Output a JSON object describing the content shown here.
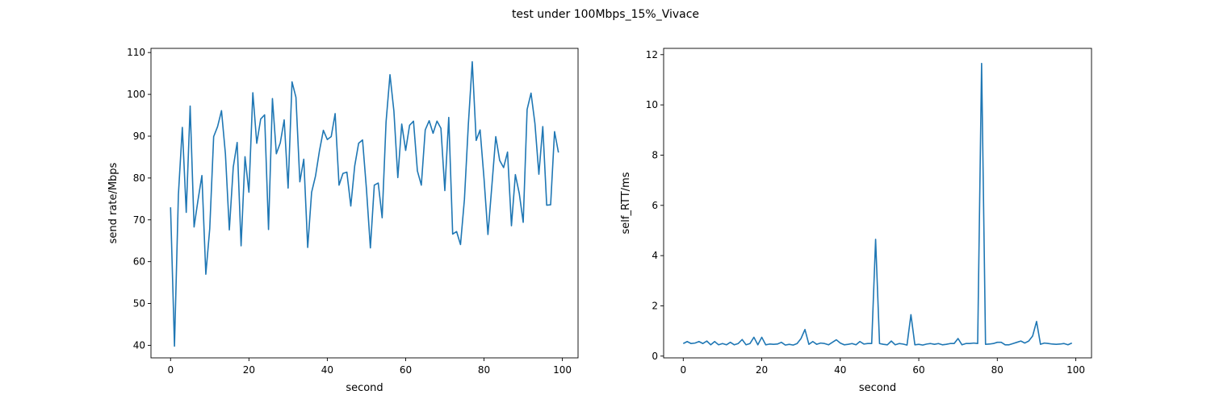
{
  "figure": {
    "title": "test under 100Mbps_15%_Vivace"
  },
  "chart_data": [
    {
      "type": "line",
      "xlabel": "second",
      "ylabel": "send rate/Mbps",
      "xlim": [
        -5,
        104
      ],
      "ylim": [
        37,
        111
      ],
      "xticks": [
        0,
        20,
        40,
        60,
        80,
        100
      ],
      "yticks": [
        40,
        50,
        60,
        70,
        80,
        90,
        100,
        110
      ],
      "grid": false,
      "color": "#1f77b4",
      "series": [
        {
          "x": [
            0,
            1,
            2,
            3,
            4,
            5,
            6,
            7,
            8,
            9,
            10,
            11,
            12,
            13,
            14,
            15,
            16,
            17,
            18,
            19,
            20,
            21,
            22,
            23,
            24,
            25,
            26,
            27,
            28,
            29,
            30,
            31,
            32,
            33,
            34,
            35,
            36,
            37,
            38,
            39,
            40,
            41,
            42,
            43,
            44,
            45,
            46,
            47,
            48,
            49,
            50,
            51,
            52,
            53,
            54,
            55,
            56,
            57,
            58,
            59,
            60,
            61,
            62,
            63,
            64,
            65,
            66,
            67,
            68,
            69,
            70,
            71,
            72,
            73,
            74,
            75,
            76,
            77,
            78,
            79,
            80,
            81,
            82,
            83,
            84,
            85,
            86,
            87,
            88,
            89,
            90,
            91,
            92,
            93,
            94,
            95,
            96,
            97,
            98,
            99
          ],
          "values": [
            73.0,
            39.8,
            76.0,
            92.1,
            71.8,
            97.2,
            68.3,
            74.7,
            80.6,
            57.0,
            67.9,
            89.9,
            92.3,
            96.1,
            85.8,
            67.6,
            82.6,
            88.5,
            63.8,
            85.1,
            76.6,
            100.4,
            88.3,
            94.1,
            95.1,
            67.7,
            99.0,
            85.8,
            88.4,
            93.9,
            77.6,
            103.0,
            99.3,
            79.1,
            84.5,
            63.4,
            76.6,
            80.5,
            86.5,
            91.4,
            89.2,
            89.9,
            95.4,
            78.3,
            81.1,
            81.4,
            73.3,
            82.9,
            88.3,
            89.1,
            77.3,
            63.3,
            78.3,
            78.8,
            70.5,
            93.4,
            104.7,
            96.0,
            80.1,
            92.9,
            86.6,
            92.6,
            93.6,
            81.7,
            78.3,
            91.5,
            93.7,
            90.7,
            93.6,
            91.9,
            77.0,
            94.5,
            66.6,
            67.2,
            64.1,
            74.9,
            92.8,
            107.8,
            89.0,
            91.5,
            79.9,
            66.5,
            78.1,
            89.9,
            84.2,
            82.5,
            86.2,
            68.6,
            80.8,
            76.3,
            69.4,
            96.4,
            100.3,
            93.0,
            80.9,
            92.3,
            73.5,
            73.6,
            91.1,
            86.1
          ]
        }
      ]
    },
    {
      "type": "line",
      "xlabel": "second",
      "ylabel": "self_RTT/ms",
      "xlim": [
        -5,
        104
      ],
      "ylim": [
        -0.07,
        12.25
      ],
      "xticks": [
        0,
        20,
        40,
        60,
        80,
        100
      ],
      "yticks": [
        0,
        2,
        4,
        6,
        8,
        10,
        12
      ],
      "grid": false,
      "color": "#1f77b4",
      "series": [
        {
          "x": [
            0,
            1,
            2,
            3,
            4,
            5,
            6,
            7,
            8,
            9,
            10,
            11,
            12,
            13,
            14,
            15,
            16,
            17,
            18,
            19,
            20,
            21,
            22,
            23,
            24,
            25,
            26,
            27,
            28,
            29,
            30,
            31,
            32,
            33,
            34,
            35,
            36,
            37,
            38,
            39,
            40,
            41,
            42,
            43,
            44,
            45,
            46,
            47,
            48,
            49,
            50,
            51,
            52,
            53,
            54,
            55,
            56,
            57,
            58,
            59,
            60,
            61,
            62,
            63,
            64,
            65,
            66,
            67,
            68,
            69,
            70,
            71,
            72,
            73,
            74,
            75,
            76,
            77,
            78,
            79,
            80,
            81,
            82,
            83,
            84,
            85,
            86,
            87,
            88,
            89,
            90,
            91,
            92,
            93,
            94,
            95,
            96,
            97,
            98,
            99
          ],
          "values": [
            0.5,
            0.58,
            0.5,
            0.52,
            0.58,
            0.5,
            0.6,
            0.45,
            0.58,
            0.45,
            0.5,
            0.45,
            0.55,
            0.45,
            0.5,
            0.66,
            0.45,
            0.5,
            0.75,
            0.45,
            0.75,
            0.45,
            0.48,
            0.47,
            0.48,
            0.55,
            0.44,
            0.47,
            0.44,
            0.5,
            0.7,
            1.06,
            0.47,
            0.58,
            0.47,
            0.52,
            0.5,
            0.45,
            0.55,
            0.65,
            0.52,
            0.45,
            0.47,
            0.5,
            0.45,
            0.58,
            0.48,
            0.5,
            0.5,
            4.65,
            0.5,
            0.47,
            0.45,
            0.6,
            0.45,
            0.5,
            0.48,
            0.44,
            1.65,
            0.45,
            0.47,
            0.44,
            0.48,
            0.5,
            0.47,
            0.5,
            0.45,
            0.47,
            0.5,
            0.5,
            0.7,
            0.45,
            0.5,
            0.5,
            0.52,
            0.5,
            11.65,
            0.47,
            0.48,
            0.5,
            0.55,
            0.55,
            0.45,
            0.45,
            0.5,
            0.55,
            0.6,
            0.52,
            0.6,
            0.8,
            1.38,
            0.47,
            0.52,
            0.5,
            0.48,
            0.47,
            0.48,
            0.5,
            0.45,
            0.52
          ]
        }
      ]
    }
  ]
}
